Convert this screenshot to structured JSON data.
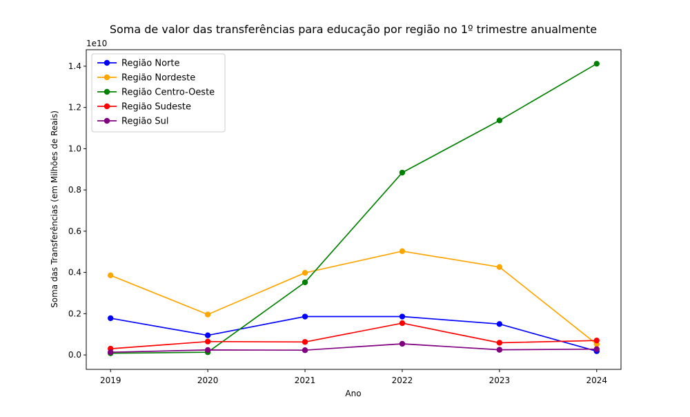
{
  "chart_data": {
    "type": "line",
    "title": "Soma de valor das transferências para educação por região no 1º trimestre anualmente",
    "xlabel": "Ano",
    "ylabel": "Soma das Transferências (em Milhões de Reais)",
    "y_offset_label": "1e10",
    "x": [
      2019,
      2020,
      2021,
      2022,
      2023,
      2024
    ],
    "x_tick_labels": [
      "2019",
      "2020",
      "2021",
      "2022",
      "2023",
      "2024"
    ],
    "xlim": [
      2018.75,
      2024.25
    ],
    "ylim": [
      -700000000,
      14800000000
    ],
    "y_ticks": [
      0,
      2000000000,
      4000000000,
      6000000000,
      8000000000,
      10000000000,
      12000000000,
      14000000000
    ],
    "y_tick_labels": [
      "0.0",
      "0.2",
      "0.4",
      "0.6",
      "0.8",
      "1.0",
      "1.2",
      "1.4"
    ],
    "grid": false,
    "legend_position": "top-left",
    "series": [
      {
        "name": "Região Norte",
        "color": "#0000ff",
        "values": [
          1780000000,
          950000000,
          1860000000,
          1860000000,
          1500000000,
          180000000
        ]
      },
      {
        "name": "Região Nordeste",
        "color": "#ffa500",
        "values": [
          3860000000,
          1960000000,
          3980000000,
          5030000000,
          4260000000,
          520000000
        ]
      },
      {
        "name": "Região Centro-Oeste",
        "color": "#008000",
        "values": [
          80000000,
          130000000,
          3520000000,
          8840000000,
          11370000000,
          14120000000
        ]
      },
      {
        "name": "Região Sudeste",
        "color": "#ff0000",
        "values": [
          300000000,
          650000000,
          630000000,
          1540000000,
          590000000,
          700000000
        ]
      },
      {
        "name": "Região Sul",
        "color": "#800080",
        "values": [
          130000000,
          240000000,
          230000000,
          540000000,
          250000000,
          280000000
        ]
      }
    ]
  }
}
